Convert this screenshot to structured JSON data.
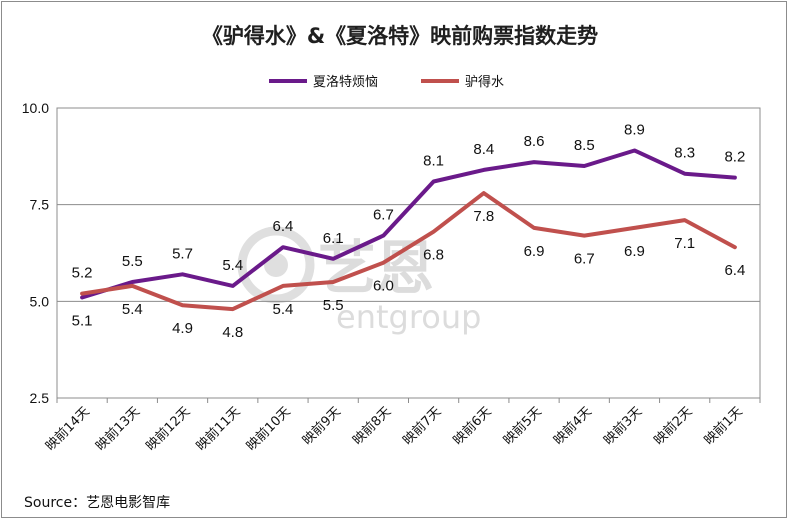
{
  "chart_data": {
    "type": "line",
    "title": "《驴得水》&《夏洛特》映前购票指数走势",
    "categories": [
      "映前14天",
      "映前13天",
      "映前12天",
      "映前11天",
      "映前10天",
      "映前9天",
      "映前8天",
      "映前7天",
      "映前6天",
      "映前5天",
      "映前4天",
      "映前3天",
      "映前2天",
      "映前1天"
    ],
    "series": [
      {
        "name": "夏洛特烦恼",
        "color": "#6a1a8a",
        "values": [
          5.1,
          5.5,
          5.7,
          5.4,
          6.4,
          6.1,
          6.7,
          8.1,
          8.4,
          8.6,
          8.5,
          8.9,
          8.3,
          8.2
        ]
      },
      {
        "name": "驴得水",
        "color": "#c0504d",
        "values": [
          5.2,
          5.4,
          4.9,
          4.8,
          5.4,
          5.5,
          6.0,
          6.8,
          7.8,
          6.9,
          6.7,
          6.9,
          7.1,
          6.4
        ]
      }
    ],
    "y_ticks": [
      "10.0",
      "7.5",
      "5.0",
      "2.5"
    ],
    "ylim": [
      2.5,
      10.0
    ],
    "grid": true,
    "legend": "top-center",
    "xlabel": "",
    "ylabel": ""
  },
  "watermark": {
    "cn": "艺恩",
    "en": "entgroup"
  },
  "source": "Source：艺恩电影智库"
}
